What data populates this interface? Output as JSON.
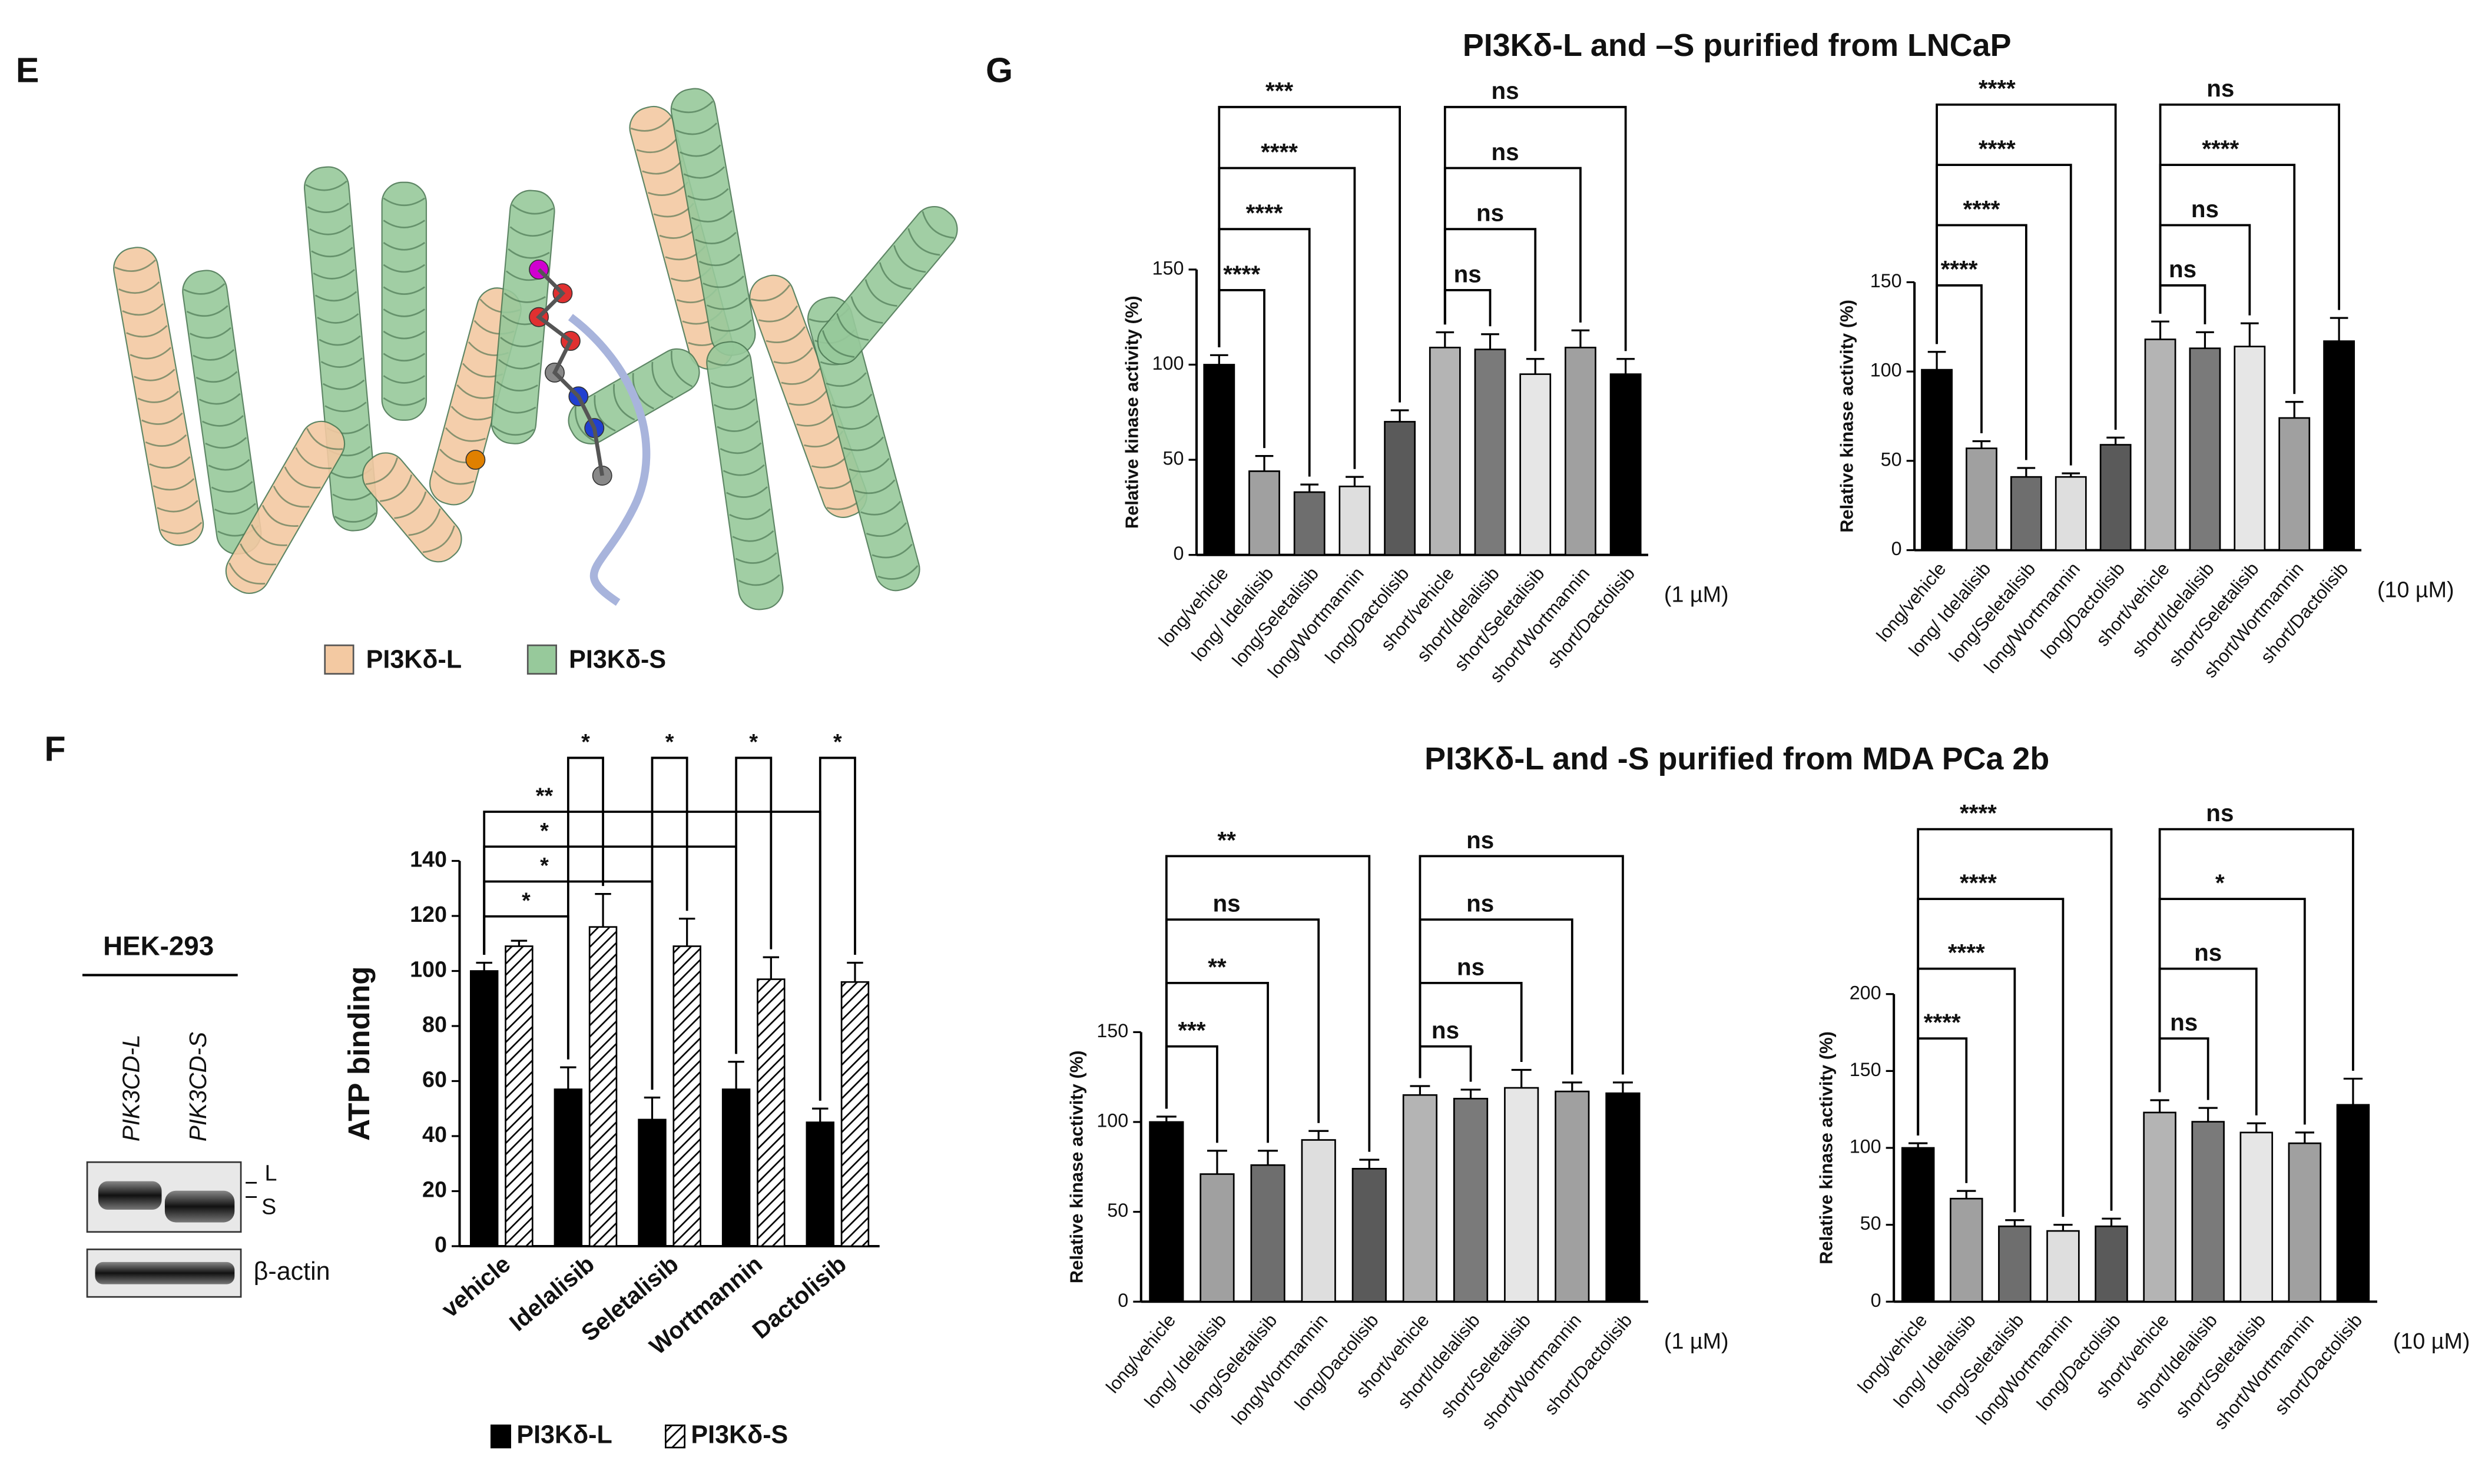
{
  "panel_e": {
    "letter": "E",
    "legend": [
      {
        "name": "PI3Kδ-L",
        "color": "#f3c9a2"
      },
      {
        "name": "PI3Kδ-S",
        "color": "#97c99b"
      }
    ]
  },
  "panel_f": {
    "letter": "F",
    "blot": {
      "cell_line": "HEK-293",
      "lanes": [
        "PIK3CD-L",
        "PIK3CD-S"
      ],
      "band_labels": [
        "L",
        "S"
      ],
      "loading_control": "β-actin"
    }
  },
  "panel_g": {
    "letter": "G",
    "titles": [
      "PI3Kδ-L and –S purified from LNCaP",
      "PI3Kδ-L and -S purified from MDA PCa 2b"
    ]
  },
  "chart_data": [
    {
      "type": "bar",
      "y_label": "ATP binding",
      "categories": [
        "vehicle",
        "Idelalisib",
        "Seletalisib",
        "Wortmannin",
        "Dactolisib"
      ],
      "series": [
        {
          "name": "PI3Kδ-L",
          "color": "#000000",
          "values": [
            100,
            57,
            46,
            57,
            45
          ],
          "errors": [
            3,
            8,
            8,
            10,
            5
          ]
        },
        {
          "name": "PI3Kδ-S",
          "color": "#000000",
          "fill_pattern": "diagonal-hatch",
          "values": [
            109,
            116,
            109,
            97,
            96
          ],
          "errors": [
            2,
            12,
            10,
            8,
            7
          ]
        }
      ],
      "ylim": [
        0,
        140
      ],
      "yticks": [
        0,
        20,
        40,
        60,
        80,
        100,
        120,
        140
      ],
      "brackets": [
        {
          "between": [
            [
              "PI3Kδ-L",
              "vehicle"
            ],
            [
              "PI3Kδ-L",
              "Idelalisib"
            ]
          ],
          "label": "*"
        },
        {
          "between": [
            [
              "PI3Kδ-L",
              "vehicle"
            ],
            [
              "PI3Kδ-L",
              "Seletalisib"
            ]
          ],
          "label": "*"
        },
        {
          "between": [
            [
              "PI3Kδ-L",
              "vehicle"
            ],
            [
              "PI3Kδ-L",
              "Wortmannin"
            ]
          ],
          "label": "*"
        },
        {
          "between": [
            [
              "PI3Kδ-L",
              "vehicle"
            ],
            [
              "PI3Kδ-L",
              "Dactolisib"
            ]
          ],
          "label": "**"
        },
        {
          "between": [
            [
              "PI3Kδ-L",
              "Idelalisib"
            ],
            [
              "PI3Kδ-S",
              "Idelalisib"
            ]
          ],
          "label": "*"
        },
        {
          "between": [
            [
              "PI3Kδ-L",
              "Seletalisib"
            ],
            [
              "PI3Kδ-S",
              "Seletalisib"
            ]
          ],
          "label": "*"
        },
        {
          "between": [
            [
              "PI3Kδ-L",
              "Wortmannin"
            ],
            [
              "PI3Kδ-S",
              "Wortmannin"
            ]
          ],
          "label": "*"
        },
        {
          "between": [
            [
              "PI3Kδ-L",
              "Dactolisib"
            ],
            [
              "PI3Kδ-S",
              "Dactolisib"
            ]
          ],
          "label": "*"
        }
      ]
    },
    {
      "type": "bar",
      "y_label": "Relative kinase activity (%)",
      "unit_note": "(1 µM)",
      "categories": [
        "long/vehicle",
        "long/ Idelalisib",
        "long/Seletalisib",
        "long/Wortmannin",
        "long/Dactolisib",
        "short/vehicle",
        "short/Idelalisib",
        "short/Seletalisib",
        "short/Wortmannin",
        "short/Dactolisib"
      ],
      "values": [
        100,
        44,
        33,
        36,
        70,
        109,
        108,
        95,
        109,
        95
      ],
      "errors": [
        5,
        8,
        4,
        5,
        6,
        8,
        8,
        8,
        9,
        8
      ],
      "colors": [
        "#000000",
        "#a0a0a0",
        "#6e6e6e",
        "#dedede",
        "#5a5a5a",
        "#b4b4b4",
        "#7a7a7a",
        "#e6e6e6",
        "#a0a0a0",
        "#000000"
      ],
      "ylim": [
        0,
        150
      ],
      "yticks": [
        0,
        50,
        100,
        150
      ],
      "brackets": [
        {
          "between": [
            "long/vehicle",
            "long/ Idelalisib"
          ],
          "label": "****"
        },
        {
          "between": [
            "long/vehicle",
            "long/Seletalisib"
          ],
          "label": "****"
        },
        {
          "between": [
            "long/vehicle",
            "long/Wortmannin"
          ],
          "label": "****"
        },
        {
          "between": [
            "long/vehicle",
            "long/Dactolisib"
          ],
          "label": "***"
        },
        {
          "between": [
            "short/vehicle",
            "short/Idelalisib"
          ],
          "label": "ns"
        },
        {
          "between": [
            "short/vehicle",
            "short/Seletalisib"
          ],
          "label": "ns"
        },
        {
          "between": [
            "short/vehicle",
            "short/Wortmannin"
          ],
          "label": "ns"
        },
        {
          "between": [
            "short/vehicle",
            "short/Dactolisib"
          ],
          "label": "ns"
        }
      ]
    },
    {
      "type": "bar",
      "y_label": "Relative kinase activity (%)",
      "unit_note": "(10 µM)",
      "categories": [
        "long/vehicle",
        "long/ Idelalisib",
        "long/Seletalisib",
        "long/Wortmannin",
        "long/Dactolisib",
        "short/vehicle",
        "short/Idelalisib",
        "short/Seletalisib",
        "short/Wortmannin",
        "short/Dactolisib"
      ],
      "values": [
        101,
        57,
        41,
        41,
        59,
        118,
        113,
        114,
        74,
        117
      ],
      "errors": [
        10,
        4,
        5,
        2,
        4,
        10,
        9,
        13,
        9,
        13
      ],
      "colors": [
        "#000000",
        "#a0a0a0",
        "#6e6e6e",
        "#dedede",
        "#5a5a5a",
        "#b4b4b4",
        "#7a7a7a",
        "#e6e6e6",
        "#a0a0a0",
        "#000000"
      ],
      "ylim": [
        0,
        150
      ],
      "yticks": [
        0,
        50,
        100,
        150
      ],
      "brackets": [
        {
          "between": [
            "long/vehicle",
            "long/ Idelalisib"
          ],
          "label": "****"
        },
        {
          "between": [
            "long/vehicle",
            "long/Seletalisib"
          ],
          "label": "****"
        },
        {
          "between": [
            "long/vehicle",
            "long/Wortmannin"
          ],
          "label": "****"
        },
        {
          "between": [
            "long/vehicle",
            "long/Dactolisib"
          ],
          "label": "****"
        },
        {
          "between": [
            "short/vehicle",
            "short/Idelalisib"
          ],
          "label": "ns"
        },
        {
          "between": [
            "short/vehicle",
            "short/Seletalisib"
          ],
          "label": "ns"
        },
        {
          "between": [
            "short/vehicle",
            "short/Wortmannin"
          ],
          "label": "****"
        },
        {
          "between": [
            "short/vehicle",
            "short/Dactolisib"
          ],
          "label": "ns"
        }
      ]
    },
    {
      "type": "bar",
      "y_label": "Relative kinase activity (%)",
      "unit_note": "(1 µM)",
      "categories": [
        "long/vehicle",
        "long/ Idelalisib",
        "long/Seletalisib",
        "long/Wortmannin",
        "long/Dactolisib",
        "short/vehicle",
        "short/Idelalisib",
        "short/Seletalisib",
        "short/Wortmannin",
        "short/Dactolisib"
      ],
      "values": [
        100,
        71,
        76,
        90,
        74,
        115,
        113,
        119,
        117,
        116
      ],
      "errors": [
        3,
        13,
        8,
        5,
        5,
        5,
        5,
        10,
        5,
        6
      ],
      "colors": [
        "#000000",
        "#a0a0a0",
        "#6e6e6e",
        "#dedede",
        "#5a5a5a",
        "#b4b4b4",
        "#7a7a7a",
        "#e6e6e6",
        "#a0a0a0",
        "#000000"
      ],
      "ylim": [
        0,
        150
      ],
      "yticks": [
        0,
        50,
        100,
        150
      ],
      "brackets": [
        {
          "between": [
            "long/vehicle",
            "long/ Idelalisib"
          ],
          "label": "***"
        },
        {
          "between": [
            "long/vehicle",
            "long/Seletalisib"
          ],
          "label": "**"
        },
        {
          "between": [
            "long/vehicle",
            "long/Wortmannin"
          ],
          "label": "ns"
        },
        {
          "between": [
            "long/vehicle",
            "long/Dactolisib"
          ],
          "label": "**"
        },
        {
          "between": [
            "short/vehicle",
            "short/Idelalisib"
          ],
          "label": "ns"
        },
        {
          "between": [
            "short/vehicle",
            "short/Seletalisib"
          ],
          "label": "ns"
        },
        {
          "between": [
            "short/vehicle",
            "short/Wortmannin"
          ],
          "label": "ns"
        },
        {
          "between": [
            "short/vehicle",
            "short/Dactolisib"
          ],
          "label": "ns"
        }
      ]
    },
    {
      "type": "bar",
      "y_label": "Relative kinase activity (%)",
      "unit_note": "(10 µM)",
      "categories": [
        "long/vehicle",
        "long/ Idelalisib",
        "long/Seletalisib",
        "long/Wortmannin",
        "long/Dactolisib",
        "short/vehicle",
        "short/Idelalisib",
        "short/Seletalisib",
        "short/Wortmannin",
        "short/Dactolisib"
      ],
      "values": [
        100,
        67,
        49,
        46,
        49,
        123,
        117,
        110,
        103,
        128
      ],
      "errors": [
        3,
        5,
        4,
        4,
        5,
        8,
        9,
        6,
        7,
        17
      ],
      "colors": [
        "#000000",
        "#a0a0a0",
        "#6e6e6e",
        "#dedede",
        "#5a5a5a",
        "#b4b4b4",
        "#7a7a7a",
        "#e6e6e6",
        "#a0a0a0",
        "#000000"
      ],
      "ylim": [
        0,
        200
      ],
      "yticks": [
        0,
        50,
        100,
        150,
        200
      ],
      "brackets": [
        {
          "between": [
            "long/vehicle",
            "long/ Idelalisib"
          ],
          "label": "****"
        },
        {
          "between": [
            "long/vehicle",
            "long/Seletalisib"
          ],
          "label": "****"
        },
        {
          "between": [
            "long/vehicle",
            "long/Wortmannin"
          ],
          "label": "****"
        },
        {
          "between": [
            "long/vehicle",
            "long/Dactolisib"
          ],
          "label": "****"
        },
        {
          "between": [
            "short/vehicle",
            "short/Idelalisib"
          ],
          "label": "ns"
        },
        {
          "between": [
            "short/vehicle",
            "short/Seletalisib"
          ],
          "label": "ns"
        },
        {
          "between": [
            "short/vehicle",
            "short/Wortmannin"
          ],
          "label": "*"
        },
        {
          "between": [
            "short/vehicle",
            "short/Dactolisib"
          ],
          "label": "ns"
        }
      ]
    }
  ]
}
